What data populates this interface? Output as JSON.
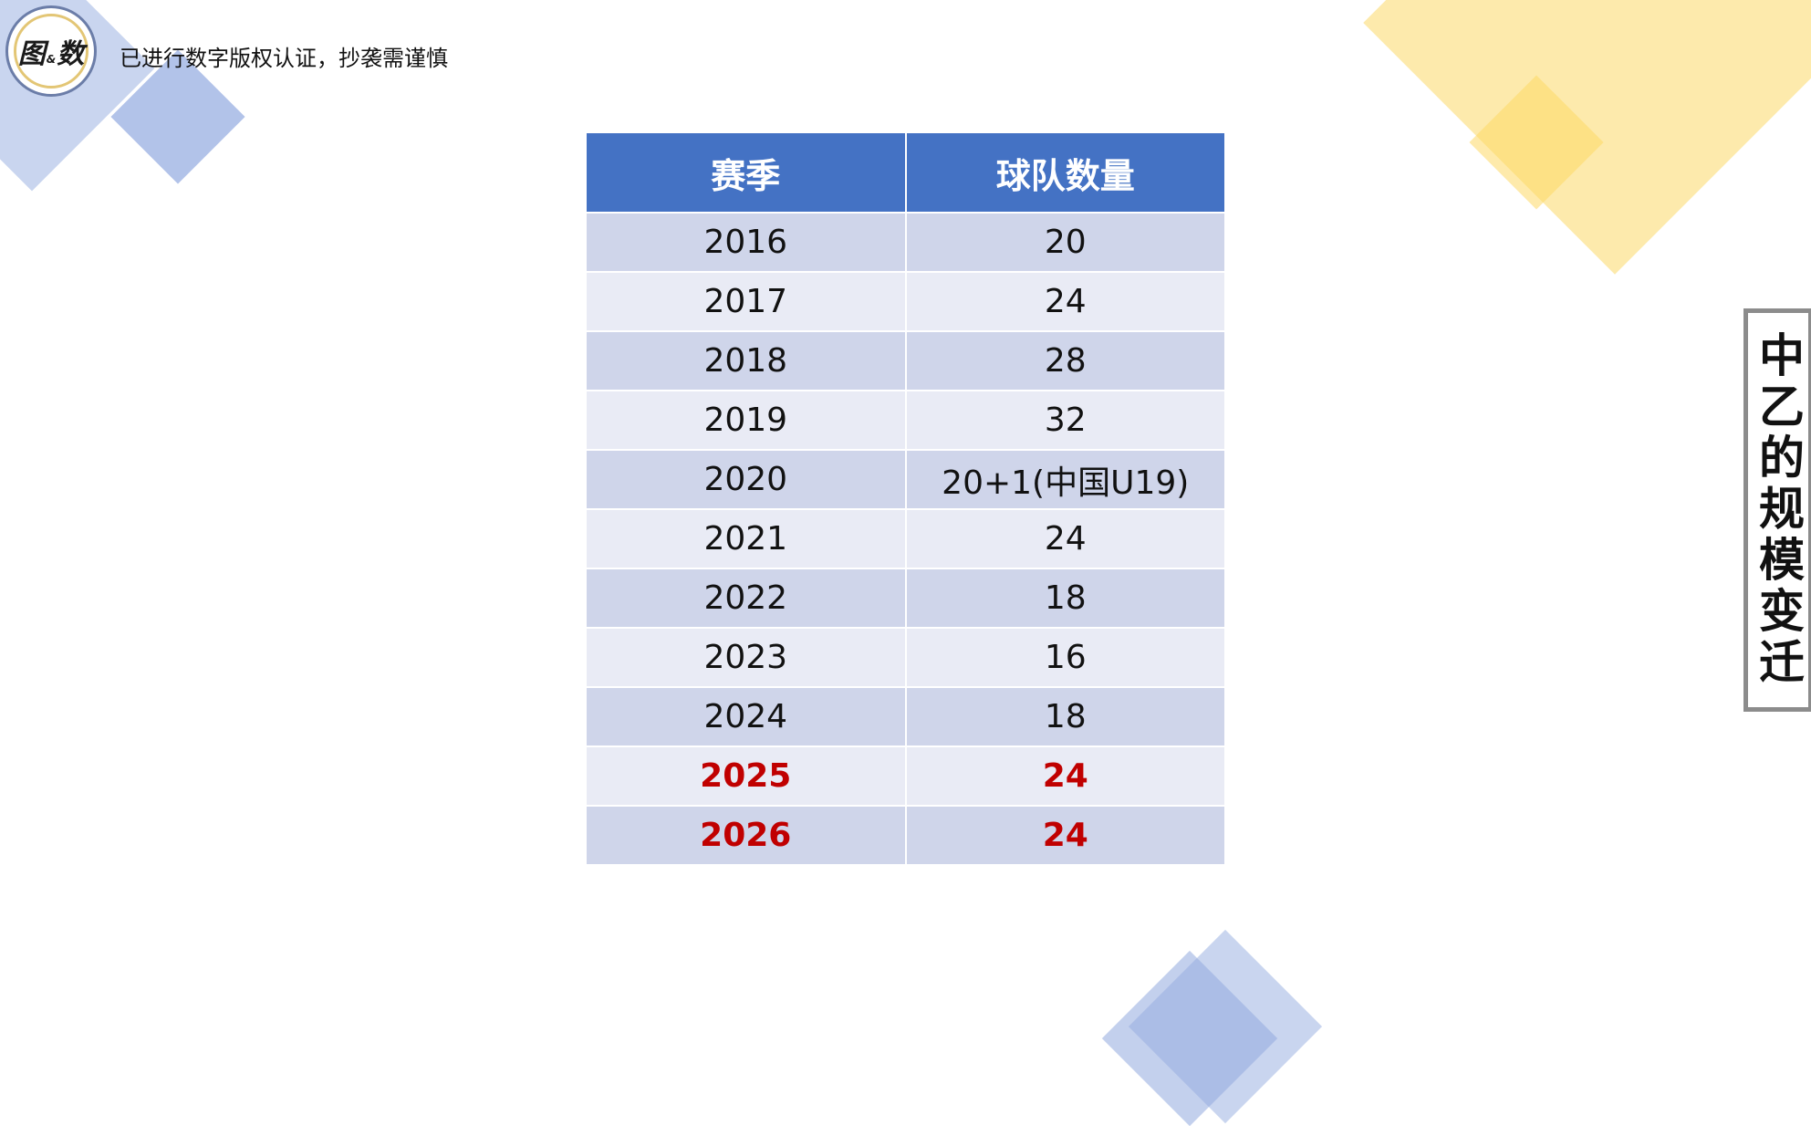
{
  "logo": {
    "text_left": "图",
    "text_amp": "&",
    "text_right": "数"
  },
  "notice": "已进行数字版权认证，抄袭需谨慎",
  "table": {
    "headers": [
      "赛季",
      "球队数量"
    ],
    "rows": [
      {
        "season": "2016",
        "teams": "20"
      },
      {
        "season": "2017",
        "teams": "24"
      },
      {
        "season": "2018",
        "teams": "28"
      },
      {
        "season": "2019",
        "teams": "32"
      },
      {
        "season": "2020",
        "teams": "20+1(中国U19)"
      },
      {
        "season": "2021",
        "teams": "24"
      },
      {
        "season": "2022",
        "teams": "18"
      },
      {
        "season": "2023",
        "teams": "16"
      },
      {
        "season": "2024",
        "teams": "18"
      },
      {
        "season": "2025",
        "teams": "24"
      },
      {
        "season": "2026",
        "teams": "24"
      }
    ],
    "highlight_color": "#c00000"
  },
  "side_title": "中乙的规模变迁",
  "colors": {
    "header_bg": "#4472c4",
    "row_odd": "#cfd5ea",
    "row_even": "#e9ebf5",
    "deco_blue": "#b7c7ea",
    "deco_yellow": "#fde9a8"
  }
}
